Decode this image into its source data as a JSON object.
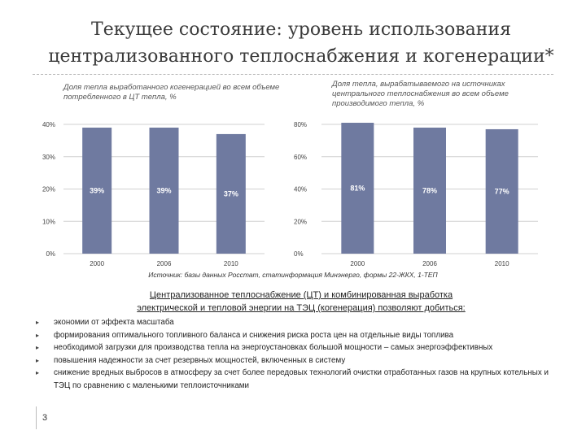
{
  "slide": {
    "title_line1": "Текущее состояние: уровень использования",
    "title_line2": "централизованного теплоснабжения и когенерации*",
    "source": "Источник: базы данных Росстат, статинформация Минэнерго, формы 22-ЖКХ, 1-ТЕП",
    "sub_heading_line1": "Централизованное теплоснабжение (ЦТ) и комбинированная выработка",
    "sub_heading_line2": "электрической и тепловой энергии на ТЭЦ (когенерация) позволяют добиться:",
    "benefits": [
      "экономии от эффекта масштаба",
      "формирования оптимального топливного баланса и снижения риска роста цен на отдельные виды топлива",
      "необходимой загрузки для производства тепла на энергоустановках большой мощности – самых энергоэффективных",
      "повышения надежности за счет резервных мощностей, включенных в систему",
      "снижение вредных выбросов в атмосферу за счет более передовых технологий очистки отработанных газов на крупных котельных и ТЭЦ по сравнению с маленькими теплоисточниками"
    ],
    "bullet_icon": "triangle-bullet-icon",
    "page_number": "3",
    "colors": {
      "bar": "#6f7aa0",
      "gridline": "#d0d0d0",
      "bar_label": "#ffffff"
    }
  },
  "chart_data": [
    {
      "type": "bar",
      "title": "Доля тепла выработанного когенерацией во всем объеме потребленного в ЦТ тепла, %",
      "categories": [
        "2000",
        "2006",
        "2010"
      ],
      "values": [
        39,
        39,
        37
      ],
      "data_labels": [
        "39%",
        "39%",
        "37%"
      ],
      "ytick_labels": [
        "0%",
        "10%",
        "20%",
        "30%",
        "40%"
      ],
      "ylim": [
        0,
        40
      ],
      "xlabel": "",
      "ylabel": "",
      "grid": true
    },
    {
      "type": "bar",
      "title": "Доля тепла, вырабатываемого на источниках центрального теплоснабжения во всем объеме производимого тепла, %",
      "categories": [
        "2000",
        "2006",
        "2010"
      ],
      "values": [
        81,
        78,
        77
      ],
      "data_labels": [
        "81%",
        "78%",
        "77%"
      ],
      "ytick_labels": [
        "0%",
        "20%",
        "40%",
        "60%",
        "80%"
      ],
      "ylim": [
        0,
        80
      ],
      "xlabel": "",
      "ylabel": "",
      "grid": true
    }
  ]
}
